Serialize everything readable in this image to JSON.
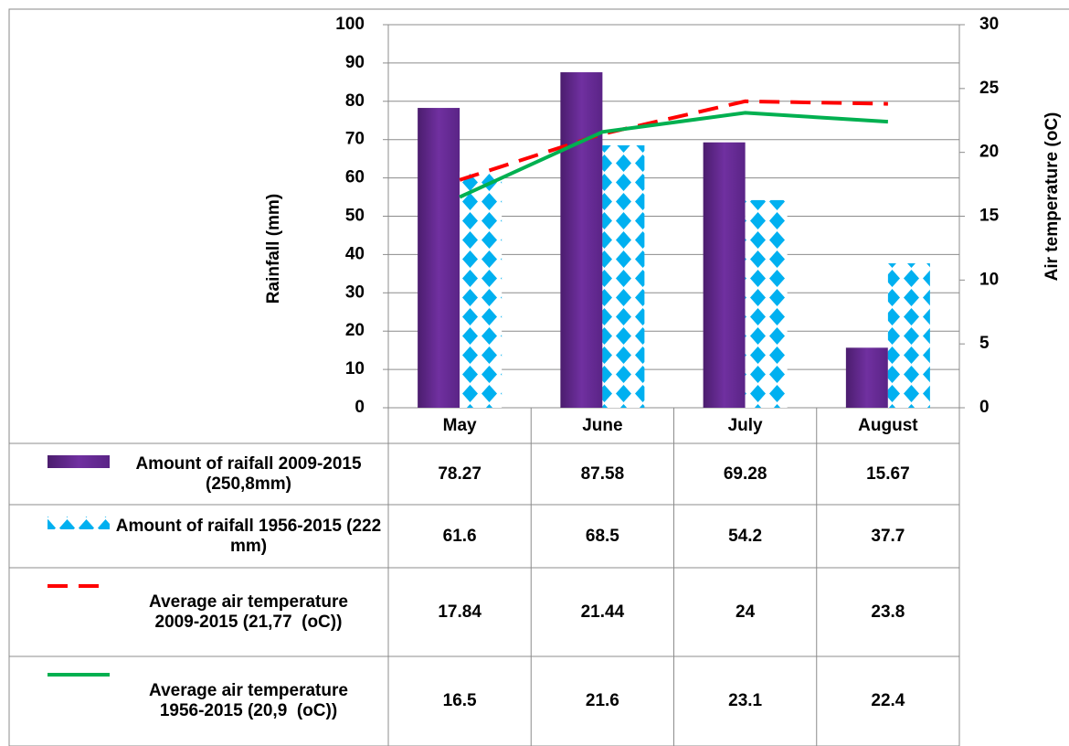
{
  "chart_data": {
    "type": "bar",
    "y_label": "Rainfall (mm)",
    "y2_label": "Air temperature (oC)",
    "categories": [
      "May",
      "June",
      "July",
      "August"
    ],
    "series": [
      {
        "name": "Amount of raifall 2009-2015 (250,8mm)",
        "type": "bar",
        "color": "#7030a0",
        "values": [
          78.27,
          87.58,
          69.28,
          15.67
        ]
      },
      {
        "name": "Amount of raifall 1956-2015 (222 mm)",
        "type": "bar",
        "color": "#00b0f0",
        "pattern": "diamonds",
        "values": [
          61.6,
          68.5,
          54.2,
          37.7
        ]
      },
      {
        "name": "Average air temperature 2009-2015 (21,77  (oC))",
        "type": "line",
        "style": "dashed",
        "axis": "y2",
        "color": "#ff0000",
        "values": [
          17.84,
          21.44,
          24,
          23.8
        ]
      },
      {
        "name": "Average air temperature 1956-2015 (20,9  (oC))",
        "type": "line",
        "style": "solid",
        "axis": "y2",
        "color": "#00b050",
        "values": [
          16.5,
          21.6,
          23.1,
          22.4
        ]
      }
    ],
    "ylim": [
      0,
      100
    ],
    "yticks": [
      0,
      10,
      20,
      30,
      40,
      50,
      60,
      70,
      80,
      90,
      100
    ],
    "y2lim": [
      0,
      30
    ],
    "y2ticks": [
      0,
      5,
      10,
      15,
      20,
      25,
      30
    ],
    "grid": true,
    "data_table": true
  }
}
